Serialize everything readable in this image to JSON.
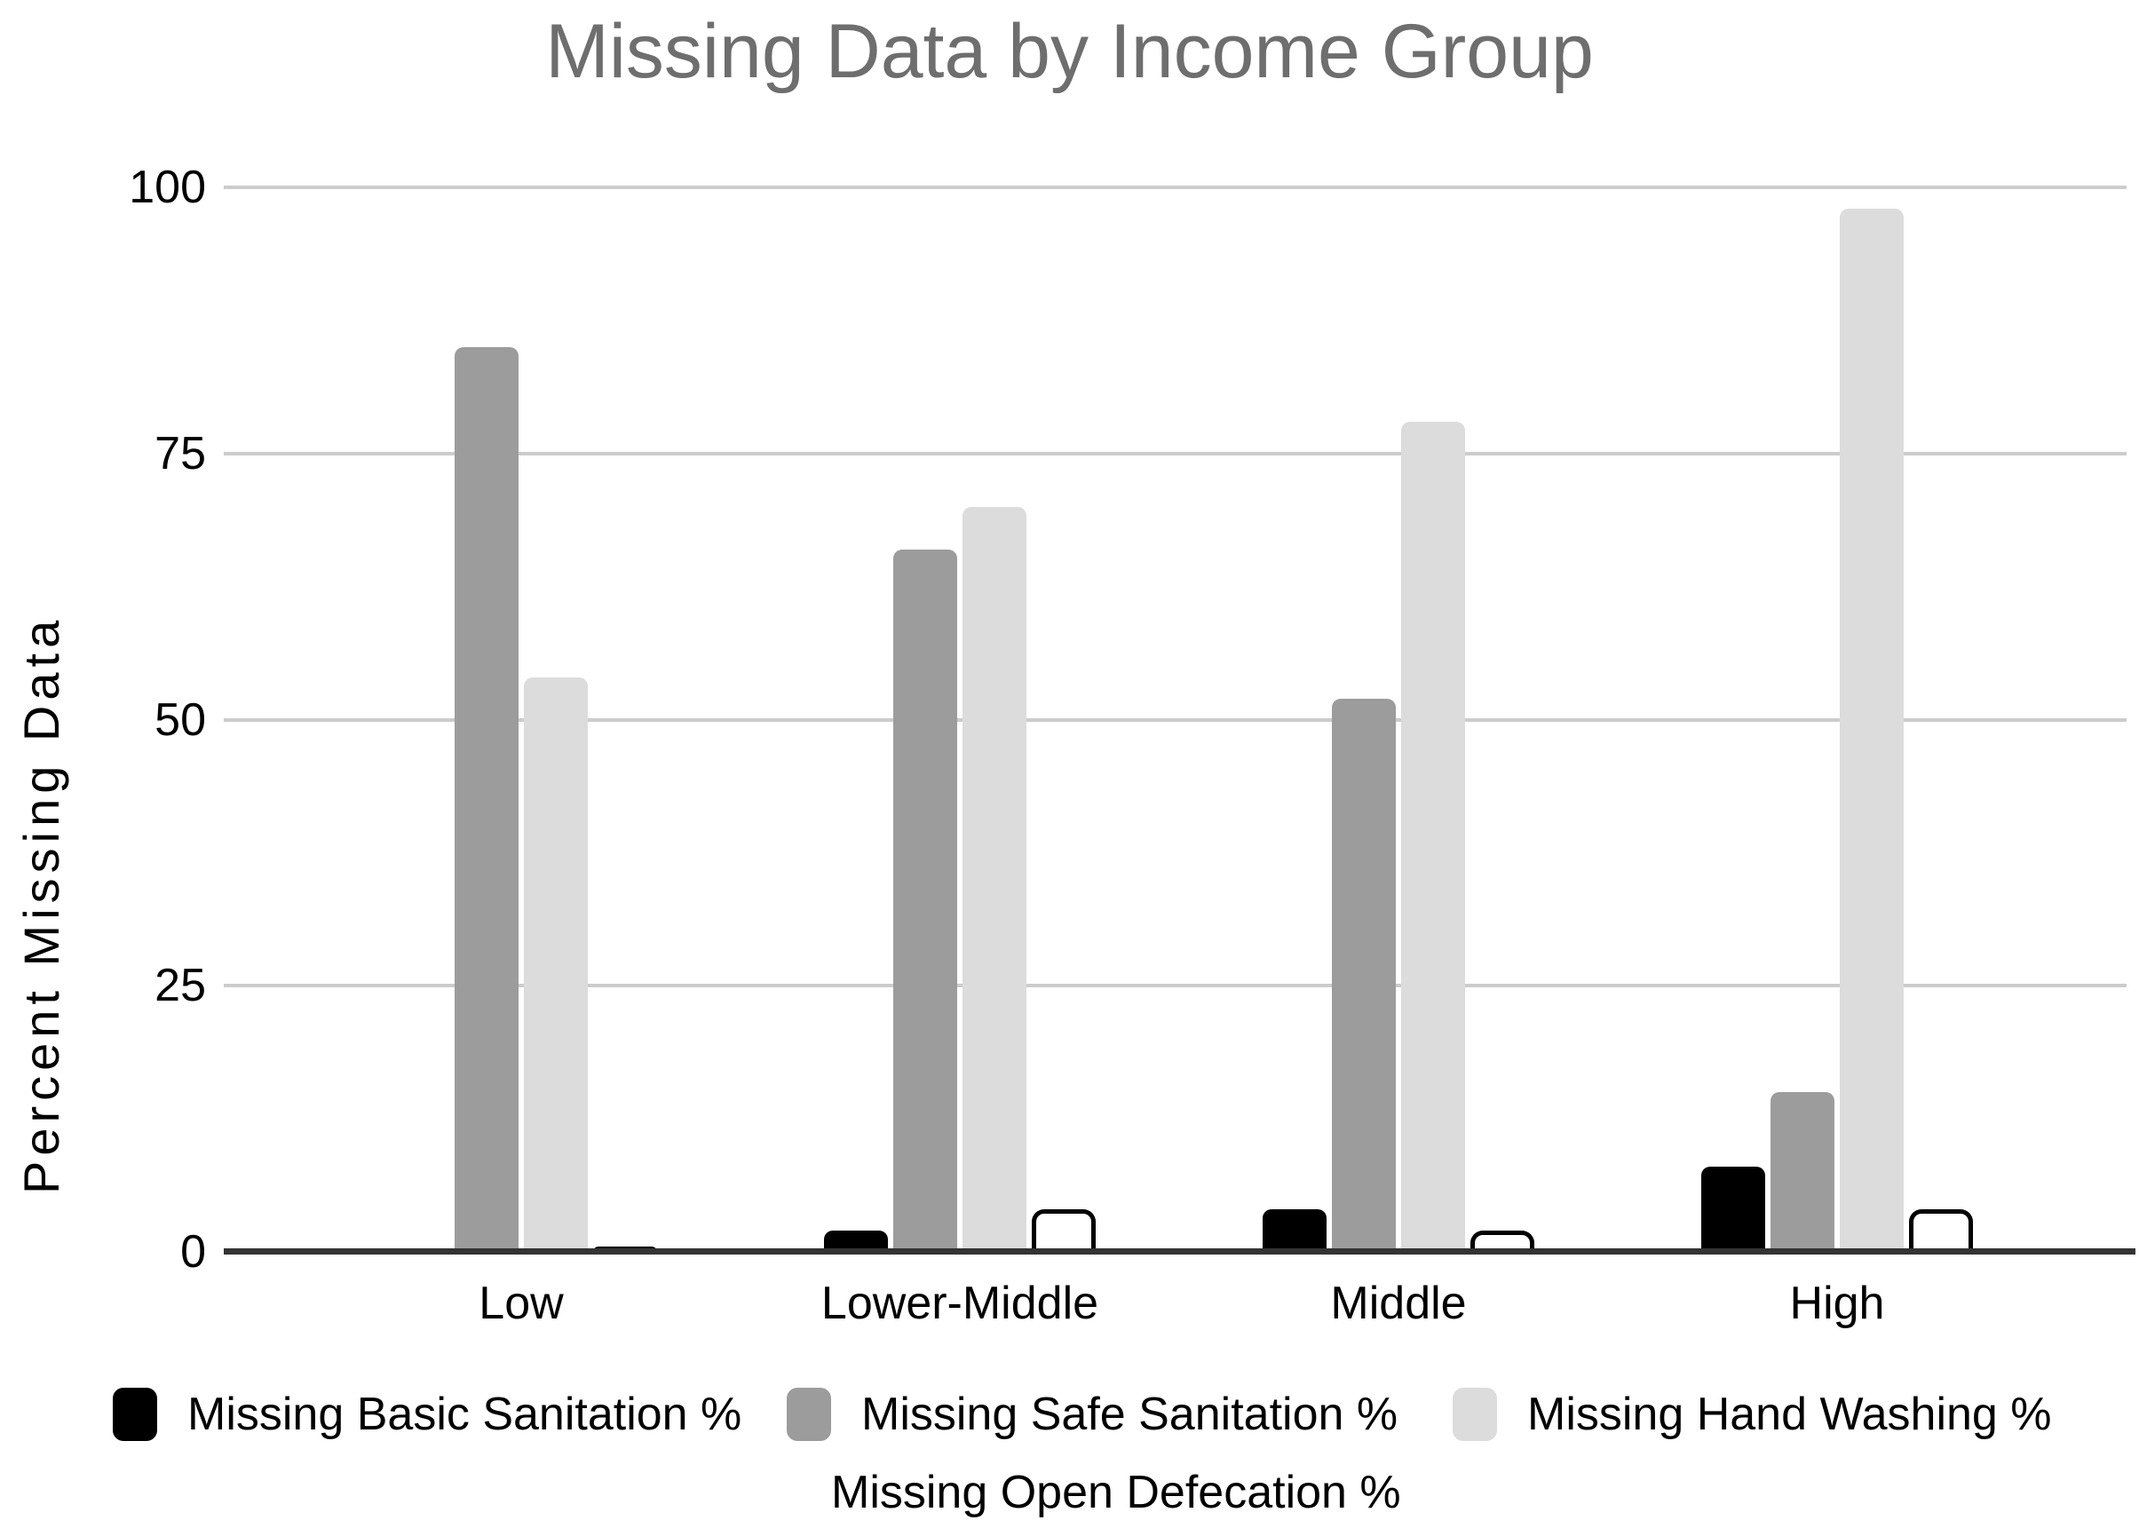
{
  "title": "Missing Data by Income Group",
  "y_axis": {
    "label": "Percent Missing Data",
    "ticks": [
      0,
      25,
      50,
      75,
      100
    ],
    "min": 0,
    "max": 100
  },
  "x_axis": {
    "categories": [
      "Low",
      "Lower-Middle",
      "Middle",
      "High"
    ]
  },
  "legend": {
    "rows": [
      [
        {
          "label": "Missing Basic Sanitation %",
          "color": "#000000"
        },
        {
          "label": "Missing Safe Sanitation %",
          "color": "#9c9c9c"
        },
        {
          "label": "Missing Hand Washing %",
          "color": "#dcdcdc"
        }
      ],
      [
        {
          "label": "Missing Open Defecation %",
          "color": "#ffffff"
        }
      ]
    ]
  },
  "colors": {
    "title_text": "#6e6e6e",
    "axis_text": "#000000",
    "gridline": "#cccccc",
    "axis_line": "#333333",
    "series_basic": "#000000",
    "series_safe": "#9c9c9c",
    "series_hand": "#dcdcdc",
    "series_open_fill": "#ffffff",
    "series_open_border": "#000000",
    "background": "#ffffff"
  },
  "chart_data": {
    "type": "bar",
    "title": "Missing Data by Income Group",
    "xlabel": "",
    "ylabel": "Percent Missing Data",
    "ylim": [
      0,
      100
    ],
    "y_ticks": [
      0,
      25,
      50,
      75,
      100
    ],
    "grid": true,
    "legend_position": "bottom",
    "categories": [
      "Low",
      "Lower-Middle",
      "Middle",
      "High"
    ],
    "series": [
      {
        "name": "Missing Basic Sanitation %",
        "color": "#000000",
        "values": [
          0,
          2,
          4,
          8
        ]
      },
      {
        "name": "Missing Safe Sanitation %",
        "color": "#9c9c9c",
        "values": [
          85,
          66,
          52,
          15
        ]
      },
      {
        "name": "Missing Hand Washing %",
        "color": "#dcdcdc",
        "values": [
          54,
          70,
          78,
          98
        ]
      },
      {
        "name": "Missing Open Defecation %",
        "color": "#ffffff",
        "border": "#000000",
        "values": [
          0.5,
          4,
          2,
          4
        ]
      }
    ]
  }
}
